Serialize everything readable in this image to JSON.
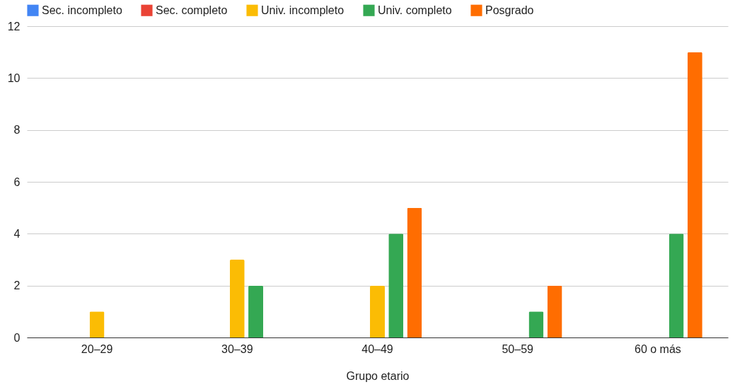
{
  "chart_data": {
    "type": "bar",
    "xlabel": "Grupo etario",
    "categories": [
      "20–29",
      "30–39",
      "40–49",
      "50–59",
      "60 o más"
    ],
    "series": [
      {
        "name": "Sec. incompleto",
        "color": "#4285f4",
        "values": [
          0,
          0,
          0,
          0,
          0
        ]
      },
      {
        "name": "Sec. completo",
        "color": "#ea4335",
        "values": [
          0,
          0,
          0,
          0,
          0
        ]
      },
      {
        "name": "Univ. incompleto",
        "color": "#fbbc04",
        "values": [
          1,
          3,
          2,
          0,
          0
        ]
      },
      {
        "name": "Univ. completo",
        "color": "#34a853",
        "values": [
          0,
          2,
          4,
          1,
          4
        ]
      },
      {
        "name": "Posgrado",
        "color": "#ff6d01",
        "values": [
          0,
          0,
          5,
          2,
          11
        ]
      }
    ],
    "ylim": [
      0,
      12
    ],
    "yticks": [
      0,
      2,
      4,
      6,
      8,
      10,
      12
    ],
    "grid": "y",
    "legend": "top left"
  }
}
